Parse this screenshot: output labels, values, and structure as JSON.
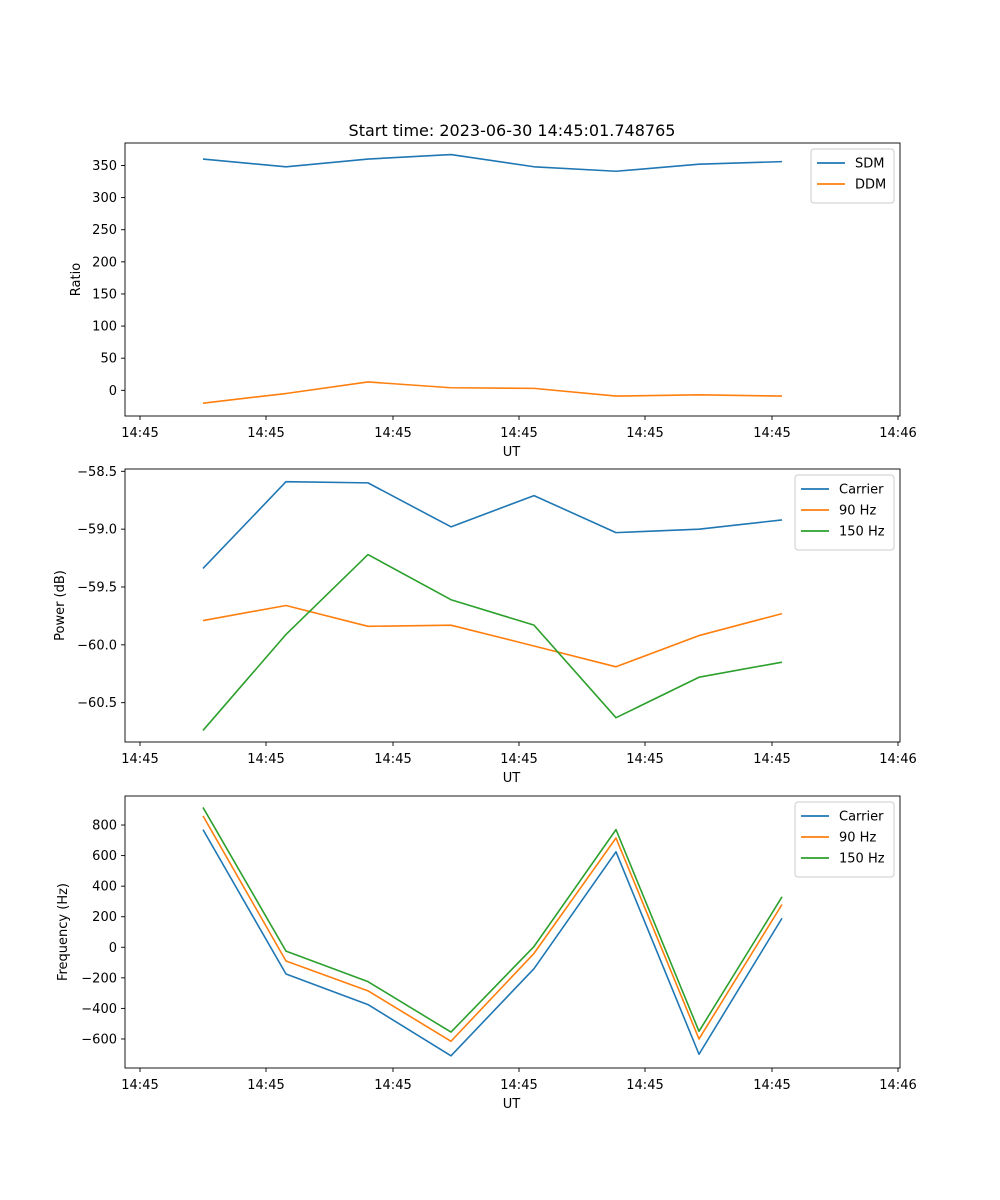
{
  "title": "Start time: 2023-06-30 14:45:01.748765",
  "chart_data": [
    {
      "type": "line",
      "ylabel": "Ratio",
      "xlabel": "UT",
      "x_tick_labels": [
        "14:45",
        "14:45",
        "14:45",
        "14:45",
        "14:45",
        "14:45",
        "14:45",
        "14:46"
      ],
      "y_ticks": [
        0,
        50,
        100,
        150,
        200,
        250,
        300,
        350
      ],
      "y_tick_labels": [
        "0",
        "50",
        "100",
        "150",
        "200",
        "250",
        "300",
        "350"
      ],
      "ylim": [
        -40,
        385
      ],
      "legend_position": "top-right",
      "grid": false,
      "series": [
        {
          "name": "SDM",
          "color": "#1f77b4",
          "values": [
            360,
            348,
            360,
            367,
            348,
            341,
            352,
            356
          ]
        },
        {
          "name": "DDM",
          "color": "#ff7f0e",
          "values": [
            -20,
            -5,
            13,
            4,
            3,
            -9,
            -7,
            -9
          ]
        }
      ]
    },
    {
      "type": "line",
      "ylabel": "Power (dB)",
      "xlabel": "UT",
      "x_tick_labels": [
        "14:45",
        "14:45",
        "14:45",
        "14:45",
        "14:45",
        "14:45",
        "14:45",
        "14:46"
      ],
      "y_ticks": [
        -60.5,
        -60.0,
        -59.5,
        -59.0,
        -58.5
      ],
      "y_tick_labels": [
        "−60.5",
        "−60.0",
        "−59.5",
        "−59.0",
        "−58.5"
      ],
      "ylim": [
        -60.84,
        -58.48
      ],
      "legend_position": "top-right",
      "grid": false,
      "series": [
        {
          "name": "Carrier",
          "color": "#1f77b4",
          "values": [
            -59.34,
            -58.59,
            -58.6,
            -58.98,
            -58.71,
            -59.03,
            -59.0,
            -58.92
          ]
        },
        {
          "name": "90 Hz",
          "color": "#ff7f0e",
          "values": [
            -59.79,
            -59.66,
            -59.84,
            -59.83,
            -60.01,
            -60.19,
            -59.92,
            -59.73
          ]
        },
        {
          "name": "150 Hz",
          "color": "#2ca02c",
          "values": [
            -60.74,
            -59.91,
            -59.22,
            -59.61,
            -59.83,
            -60.63,
            -60.28,
            -60.15
          ]
        }
      ]
    },
    {
      "type": "line",
      "ylabel": "Frequency (Hz)",
      "xlabel": "UT",
      "x_tick_labels": [
        "14:45",
        "14:45",
        "14:45",
        "14:45",
        "14:45",
        "14:45",
        "14:45",
        "14:46"
      ],
      "y_ticks": [
        -600,
        -400,
        -200,
        0,
        200,
        400,
        600,
        800
      ],
      "y_tick_labels": [
        "−600",
        "−400",
        "−200",
        "0",
        "200",
        "400",
        "600",
        "800"
      ],
      "ylim": [
        -790,
        990
      ],
      "legend_position": "top-right",
      "grid": false,
      "series": [
        {
          "name": "Carrier",
          "color": "#1f77b4",
          "values": [
            770,
            -175,
            -375,
            -710,
            -140,
            625,
            -700,
            190
          ]
        },
        {
          "name": "90 Hz",
          "color": "#ff7f0e",
          "values": [
            860,
            -90,
            -285,
            -615,
            -40,
            715,
            -600,
            280
          ]
        },
        {
          "name": "150 Hz",
          "color": "#2ca02c",
          "values": [
            915,
            -25,
            -225,
            -555,
            5,
            770,
            -550,
            330
          ]
        }
      ]
    }
  ]
}
